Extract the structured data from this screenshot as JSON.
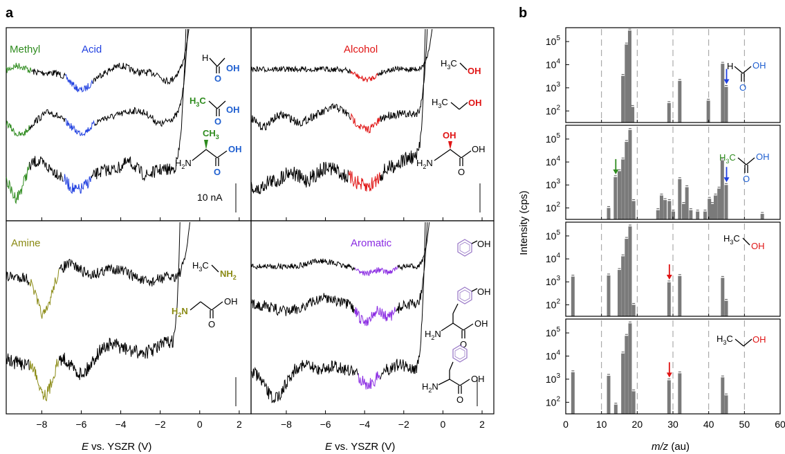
{
  "panel_a_label": "a",
  "panel_b_label": "b",
  "colors": {
    "methyl": "#2e8b1e",
    "acid": "#1f3fe0",
    "alcohol": "#e01414",
    "amine": "#8a8a14",
    "aromatic": "#8a2be2",
    "trace": "#000000",
    "bar": "#7a7a7a",
    "green_text": "#2e8b1e",
    "blue_text": "#1f5fd0",
    "red_text": "#e01414"
  },
  "panel_a": {
    "xlabel_left": "E vs. YSZR (V)",
    "xlabel_right": "E vs. YSZR (V)",
    "xlim": [
      -9.8,
      2.6
    ],
    "x_ticks": [
      "−8",
      "−6",
      "−4",
      "−2",
      "0",
      "2"
    ],
    "x_tick_values": [
      -8,
      -6,
      -4,
      -2,
      0,
      2
    ],
    "scale_bar_label": "10 nA",
    "subpanels": {
      "top_left": {
        "labels": [
          "Methyl",
          "Acid"
        ],
        "molecules": [
          "formic acid",
          "acetic acid",
          "alanine"
        ]
      },
      "top_right": {
        "labels": [
          "Alcohol"
        ],
        "molecules": [
          "methanol",
          "ethanol",
          "serine"
        ]
      },
      "bottom_left": {
        "labels": [
          "Amine"
        ],
        "molecules": [
          "methylamine",
          "glycine"
        ]
      },
      "bottom_right": {
        "labels": [
          "Aromatic"
        ],
        "molecules": [
          "phenol",
          "tyrosine",
          "phenylalanine"
        ]
      }
    },
    "mol_text": {
      "H": "H",
      "OH": "OH",
      "O": "O",
      "H3C": "H",
      "sub3": "3",
      "C": "C",
      "CH3": "CH",
      "H2N": "H",
      "sub2": "2",
      "N": "N",
      "NH2": "NH"
    }
  },
  "chart_data": [
    {
      "type": "bar",
      "panel": "b",
      "ylabel": "Intensity (cps)",
      "xlabel": "m/z (au)",
      "xlim": [
        0,
        60
      ],
      "ylim_log10": [
        1.5,
        5.6
      ],
      "x_ticks": [
        0,
        10,
        20,
        30,
        40,
        50,
        60
      ],
      "y_ticks": [
        "10",
        "10",
        "10",
        "10"
      ],
      "y_tick_exponents": [
        "2",
        "3",
        "4",
        "5"
      ],
      "y_tick_values": [
        100,
        1000,
        10000,
        100000
      ],
      "dashed_gridlines_x": [
        10,
        20,
        30,
        40,
        50
      ],
      "panels": [
        {
          "molecule": "formic acid",
          "bars": [
            [
              17.9,
              300000
            ],
            [
              17.0,
              75000
            ],
            [
              16.0,
              3300
            ],
            [
              18.7,
              150
            ],
            [
              28.9,
              220
            ],
            [
              31.9,
              2000
            ],
            [
              39.9,
              280
            ],
            [
              43.9,
              11000
            ],
            [
              44.9,
              1100
            ]
          ],
          "arrows": [
            {
              "x": 45,
              "color": "#1f3fe0"
            }
          ]
        },
        {
          "molecule": "acetic acid",
          "bars": [
            [
              12,
              100
            ],
            [
              13.9,
              2200
            ],
            [
              15,
              4000
            ],
            [
              16,
              13000
            ],
            [
              17,
              75000
            ],
            [
              18,
              250000
            ],
            [
              19,
              200
            ],
            [
              25.8,
              80
            ],
            [
              26.8,
              350
            ],
            [
              27.8,
              220
            ],
            [
              29,
              200
            ],
            [
              30.1,
              70
            ],
            [
              31.9,
              1800
            ],
            [
              33,
              150
            ],
            [
              33.9,
              800
            ],
            [
              35,
              80
            ],
            [
              36.9,
              70
            ],
            [
              39,
              70
            ],
            [
              40.2,
              250
            ],
            [
              41,
              150
            ],
            [
              41.9,
              350
            ],
            [
              42.9,
              700
            ],
            [
              43.8,
              12000
            ],
            [
              44.9,
              1000
            ],
            [
              55,
              55
            ]
          ],
          "arrows": [
            {
              "x": 14,
              "color": "#2e8b1e"
            },
            {
              "x": 45,
              "color": "#1f3fe0"
            }
          ]
        },
        {
          "molecule": "methanol",
          "bars": [
            [
              2,
              1700
            ],
            [
              12,
              1900
            ],
            [
              15,
              3300
            ],
            [
              16,
              13000
            ],
            [
              17,
              75000
            ],
            [
              18,
              260000
            ],
            [
              19,
              100
            ],
            [
              28.9,
              950
            ],
            [
              31.9,
              1800
            ],
            [
              43.9,
              1500
            ],
            [
              44.9,
              150
            ]
          ],
          "arrows": [
            {
              "x": 29,
              "color": "#e01414"
            }
          ]
        },
        {
          "molecule": "ethanol",
          "bars": [
            [
              2,
              2000
            ],
            [
              12,
              1400
            ],
            [
              14,
              80
            ],
            [
              16,
              13000
            ],
            [
              17,
              75000
            ],
            [
              18,
              260000
            ],
            [
              19,
              300
            ],
            [
              28.9,
              900
            ],
            [
              31.9,
              1800
            ],
            [
              43.9,
              1200
            ],
            [
              44.9,
              200
            ]
          ],
          "arrows": [
            {
              "x": 29,
              "color": "#e01414"
            }
          ]
        }
      ]
    }
  ]
}
